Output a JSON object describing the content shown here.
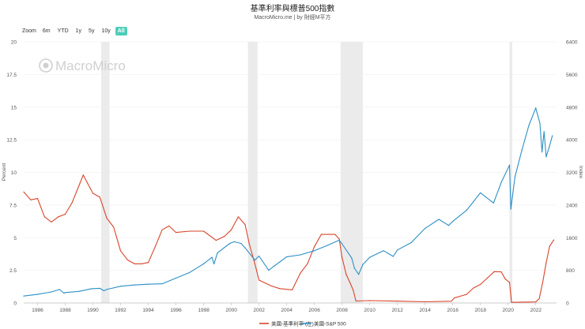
{
  "chart_data": {
    "type": "line",
    "title": "基準利率與標普500指數",
    "subtitle": "MacroMicro.me | by 財經M平方",
    "watermark": "MacroMicro",
    "zoom": {
      "label": "Zoom",
      "options": [
        "6m",
        "YTD",
        "1y",
        "5y",
        "10y",
        "All"
      ],
      "selected": "All"
    },
    "x": {
      "min": 1985.0,
      "max": 2023.5,
      "ticks": [
        1986,
        1988,
        1990,
        1992,
        1994,
        1996,
        1998,
        2000,
        2002,
        2004,
        2006,
        2008,
        2010,
        2012,
        2014,
        2016,
        2018,
        2020,
        2022
      ]
    },
    "y_left": {
      "label": "Percent",
      "min": 0,
      "max": 20,
      "ticks": [
        0,
        2.5,
        5,
        7.5,
        10,
        12.5,
        15,
        17.5,
        20
      ]
    },
    "y_right": {
      "label": "Index",
      "min": 0,
      "max": 6400,
      "ticks": [
        0,
        800,
        1600,
        2400,
        3200,
        4000,
        4800,
        5600,
        6400
      ]
    },
    "recessions": [
      [
        1990.6,
        1991.2
      ],
      [
        2001.2,
        2001.9
      ],
      [
        2007.9,
        2009.5
      ],
      [
        2020.1,
        2020.3
      ]
    ],
    "series": [
      {
        "name": "美國-基準利率 (左)",
        "axis": "left",
        "color": "#d9442b",
        "points": [
          [
            1985.0,
            8.5
          ],
          [
            1985.5,
            7.9
          ],
          [
            1986.0,
            8.0
          ],
          [
            1986.5,
            6.6
          ],
          [
            1987.0,
            6.2
          ],
          [
            1987.5,
            6.6
          ],
          [
            1988.0,
            6.8
          ],
          [
            1988.5,
            7.7
          ],
          [
            1989.0,
            9.0
          ],
          [
            1989.3,
            9.8
          ],
          [
            1989.6,
            9.2
          ],
          [
            1990.0,
            8.4
          ],
          [
            1990.5,
            8.1
          ],
          [
            1991.0,
            6.5
          ],
          [
            1991.5,
            5.8
          ],
          [
            1992.0,
            4.0
          ],
          [
            1992.5,
            3.3
          ],
          [
            1993.0,
            3.0
          ],
          [
            1993.5,
            3.0
          ],
          [
            1994.0,
            3.1
          ],
          [
            1994.5,
            4.3
          ],
          [
            1995.0,
            5.6
          ],
          [
            1995.5,
            5.9
          ],
          [
            1996.0,
            5.4
          ],
          [
            1997.0,
            5.5
          ],
          [
            1998.0,
            5.5
          ],
          [
            1998.9,
            4.8
          ],
          [
            1999.5,
            5.1
          ],
          [
            2000.0,
            5.6
          ],
          [
            2000.5,
            6.6
          ],
          [
            2001.0,
            6.0
          ],
          [
            2001.3,
            4.5
          ],
          [
            2001.7,
            3.0
          ],
          [
            2002.0,
            1.75
          ],
          [
            2002.9,
            1.3
          ],
          [
            2003.5,
            1.1
          ],
          [
            2004.4,
            1.0
          ],
          [
            2005.0,
            2.3
          ],
          [
            2005.5,
            3.0
          ],
          [
            2006.0,
            4.3
          ],
          [
            2006.5,
            5.25
          ],
          [
            2007.5,
            5.25
          ],
          [
            2007.8,
            4.9
          ],
          [
            2008.0,
            3.5
          ],
          [
            2008.3,
            2.2
          ],
          [
            2008.8,
            1.0
          ],
          [
            2009.0,
            0.15
          ],
          [
            2010.0,
            0.18
          ],
          [
            2012.0,
            0.14
          ],
          [
            2014.0,
            0.09
          ],
          [
            2015.9,
            0.13
          ],
          [
            2016.1,
            0.38
          ],
          [
            2017.0,
            0.66
          ],
          [
            2017.5,
            1.15
          ],
          [
            2018.0,
            1.42
          ],
          [
            2018.5,
            1.91
          ],
          [
            2019.0,
            2.4
          ],
          [
            2019.5,
            2.38
          ],
          [
            2019.8,
            1.83
          ],
          [
            2020.1,
            1.58
          ],
          [
            2020.25,
            0.05
          ],
          [
            2022.0,
            0.08
          ],
          [
            2022.25,
            0.33
          ],
          [
            2022.5,
            1.58
          ],
          [
            2022.75,
            3.08
          ],
          [
            2023.0,
            4.33
          ],
          [
            2023.3,
            4.83
          ]
        ]
      },
      {
        "name": "美國-S&P 500",
        "axis": "right",
        "color": "#2c8fc6",
        "points": [
          [
            1985.0,
            170
          ],
          [
            1986.0,
            210
          ],
          [
            1987.0,
            270
          ],
          [
            1987.6,
            330
          ],
          [
            1987.9,
            240
          ],
          [
            1988.0,
            255
          ],
          [
            1989.0,
            285
          ],
          [
            1989.9,
            350
          ],
          [
            1990.5,
            360
          ],
          [
            1990.8,
            300
          ],
          [
            1991.0,
            330
          ],
          [
            1992.0,
            410
          ],
          [
            1993.0,
            440
          ],
          [
            1994.0,
            460
          ],
          [
            1995.0,
            470
          ],
          [
            1996.0,
            610
          ],
          [
            1997.0,
            750
          ],
          [
            1998.0,
            960
          ],
          [
            1998.6,
            1120
          ],
          [
            1998.75,
            960
          ],
          [
            1999.0,
            1230
          ],
          [
            1999.9,
            1460
          ],
          [
            2000.2,
            1500
          ],
          [
            2000.7,
            1460
          ],
          [
            2001.0,
            1350
          ],
          [
            2001.7,
            1050
          ],
          [
            2002.0,
            1150
          ],
          [
            2002.7,
            800
          ],
          [
            2003.0,
            880
          ],
          [
            2004.0,
            1130
          ],
          [
            2005.0,
            1180
          ],
          [
            2006.0,
            1280
          ],
          [
            2007.0,
            1420
          ],
          [
            2007.8,
            1540
          ],
          [
            2008.0,
            1450
          ],
          [
            2008.7,
            1100
          ],
          [
            2008.9,
            850
          ],
          [
            2009.2,
            700
          ],
          [
            2009.5,
            940
          ],
          [
            2010.0,
            1120
          ],
          [
            2011.0,
            1280
          ],
          [
            2011.7,
            1140
          ],
          [
            2012.0,
            1300
          ],
          [
            2013.0,
            1480
          ],
          [
            2014.0,
            1830
          ],
          [
            2015.0,
            2050
          ],
          [
            2015.7,
            1900
          ],
          [
            2016.0,
            2000
          ],
          [
            2017.0,
            2270
          ],
          [
            2018.0,
            2700
          ],
          [
            2018.95,
            2450
          ],
          [
            2019.5,
            2950
          ],
          [
            2020.1,
            3380
          ],
          [
            2020.2,
            2300
          ],
          [
            2020.5,
            3100
          ],
          [
            2021.0,
            3750
          ],
          [
            2021.5,
            4350
          ],
          [
            2022.0,
            4780
          ],
          [
            2022.3,
            4400
          ],
          [
            2022.45,
            3700
          ],
          [
            2022.6,
            4200
          ],
          [
            2022.75,
            3580
          ],
          [
            2023.0,
            3850
          ],
          [
            2023.2,
            4100
          ]
        ]
      }
    ]
  }
}
